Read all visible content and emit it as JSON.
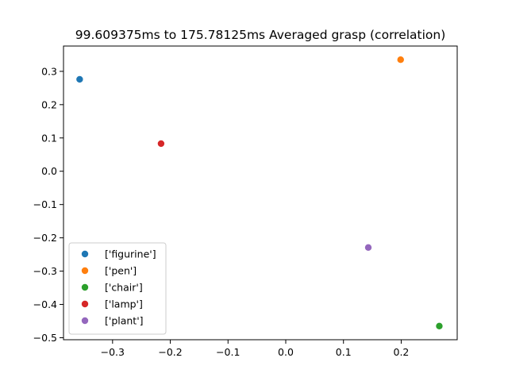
{
  "chart_data": {
    "type": "scatter",
    "title": "99.609375ms to 175.78125ms Averaged grasp (correlation)",
    "xlabel": "",
    "ylabel": "",
    "xlim": [
      -0.385,
      0.297
    ],
    "ylim": [
      -0.506,
      0.376
    ],
    "xticks": [
      -0.3,
      -0.2,
      -0.1,
      0.0,
      0.1,
      0.2
    ],
    "xtick_labels": [
      "−0.3",
      "−0.2",
      "−0.1",
      "0.0",
      "0.1",
      "0.2"
    ],
    "yticks": [
      0.3,
      0.2,
      0.1,
      0.0,
      -0.1,
      -0.2,
      -0.3,
      -0.4,
      -0.5
    ],
    "ytick_labels": [
      "0.3",
      "0.2",
      "0.1",
      "0.0",
      "−0.1",
      "−0.2",
      "−0.3",
      "−0.4",
      "−0.5"
    ],
    "grid": false,
    "legend_position": "lower-left",
    "series": [
      {
        "name": "['figurine']",
        "color": "#1f77b4",
        "x": [
          -0.357
        ],
        "y": [
          0.276
        ]
      },
      {
        "name": "['pen']",
        "color": "#ff7f0e",
        "x": [
          0.199
        ],
        "y": [
          0.335
        ]
      },
      {
        "name": "['chair']",
        "color": "#2ca02c",
        "x": [
          0.266
        ],
        "y": [
          -0.465
        ]
      },
      {
        "name": "['lamp']",
        "color": "#d62728",
        "x": [
          -0.216
        ],
        "y": [
          0.083
        ]
      },
      {
        "name": "['plant']",
        "color": "#9467bd",
        "x": [
          0.143
        ],
        "y": [
          -0.229
        ]
      }
    ]
  }
}
